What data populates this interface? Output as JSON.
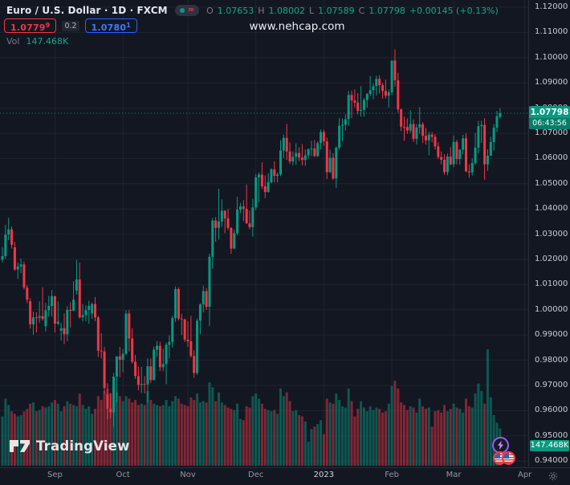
{
  "header": {
    "symbol_title": "Euro / U.S. Dollar · 1D · FXCM",
    "ohlc": {
      "open_label": "O",
      "open": "1.07653",
      "high_label": "H",
      "high": "1.08002",
      "low_label": "L",
      "low": "1.07589",
      "close_label": "C",
      "close": "1.07798",
      "change": "+0.00145 (+0.13%)"
    },
    "sell_button": {
      "price": "1.0779",
      "superscript": "9"
    },
    "spread": "0.2",
    "buy_button": {
      "price": "1.0780",
      "superscript": "1"
    },
    "volume_label": "Vol",
    "volume_value": "147.468K"
  },
  "watermark": "www.nehcap.com",
  "logo_text": "TradingView",
  "price_axis": {
    "labels": [
      "1.12000",
      "1.11000",
      "1.10000",
      "1.09000",
      "1.08000",
      "1.07000",
      "1.06000",
      "1.05000",
      "1.04000",
      "1.03000",
      "1.02000",
      "1.01000",
      "1.00000",
      "0.99000",
      "0.98000",
      "0.97000",
      "0.96000",
      "0.95000",
      "0.94000"
    ],
    "current_price_badge": {
      "price": "1.07798",
      "countdown": "06:43:56"
    },
    "volume_badge": "147.468K"
  },
  "time_axis": {
    "ticks": [
      {
        "label": "Sep",
        "index": 17
      },
      {
        "label": "Oct",
        "index": 39
      },
      {
        "label": "Nov",
        "index": 60
      },
      {
        "label": "Dec",
        "index": 82
      },
      {
        "label": "2023",
        "index": 104,
        "year": true
      },
      {
        "label": "Feb",
        "index": 126
      },
      {
        "label": "Mar",
        "index": 146
      },
      {
        "label": "Apr",
        "index": 169
      }
    ]
  },
  "icons": {
    "header_toggle": [
      "series-dot-icon",
      "wave-icon"
    ],
    "events": [
      "lightning-event-icon",
      "flag-event-icon",
      "flag-event-icon"
    ],
    "time_axis": [
      "gear-icon"
    ],
    "logo": [
      "tradingview-logo-icon"
    ]
  },
  "colors": {
    "background": "#131722",
    "up": "#089981",
    "down": "#f23645",
    "volume_up": "rgba(8,153,129,0.5)",
    "volume_down": "rgba(242,54,69,0.5)",
    "buy_blue": "#2962ff",
    "sell_red": "#f23645",
    "badge_green": "#089981",
    "axis_text": "#c9ccd4",
    "muted_text": "#787b86",
    "grid": "rgba(171,180,202,0.08)",
    "separator": "#2a2e39"
  },
  "chart_data": {
    "type": "candlestick",
    "symbol": "EUR/USD",
    "interval": "1D",
    "title": "Euro / U.S. Dollar · 1D · FXCM",
    "price_range": [
      0.94,
      1.12
    ],
    "volume_pane": true,
    "columns": [
      "open",
      "high",
      "low",
      "close",
      "volume_k"
    ],
    "candles": [
      [
        1.0199,
        1.0249,
        1.0188,
        1.0213,
        195
      ],
      [
        1.0213,
        1.0337,
        1.0202,
        1.0298,
        265
      ],
      [
        1.0298,
        1.0365,
        1.0276,
        1.0319,
        240
      ],
      [
        1.0319,
        1.033,
        1.0243,
        1.0258,
        215
      ],
      [
        1.0248,
        1.0269,
        1.0154,
        1.016,
        205
      ],
      [
        1.016,
        1.0188,
        1.0122,
        1.0172,
        195
      ],
      [
        1.0172,
        1.0203,
        1.0145,
        1.018,
        200
      ],
      [
        1.018,
        1.0191,
        1.008,
        1.0088,
        215
      ],
      [
        1.0088,
        1.0098,
        1.0026,
        1.004,
        225
      ],
      [
        1.0034,
        1.0046,
        0.9926,
        0.9942,
        245
      ],
      [
        0.9942,
        0.9993,
        0.9901,
        0.997,
        250
      ],
      [
        0.997,
        0.999,
        0.991,
        0.9968,
        215
      ],
      [
        0.9968,
        1.0033,
        0.9949,
        0.9975,
        220
      ],
      [
        0.9975,
        1.009,
        0.9957,
        0.9964,
        235
      ],
      [
        0.9935,
        1.0028,
        0.9914,
        0.9998,
        230
      ],
      [
        0.9998,
        1.0055,
        0.9972,
        1.0015,
        235
      ],
      [
        1.0015,
        1.0079,
        0.9972,
        1.0054,
        250
      ],
      [
        1.0054,
        1.0055,
        0.991,
        0.9945,
        260
      ],
      [
        0.9945,
        1.0033,
        0.9939,
        0.9953,
        245
      ],
      [
        0.9917,
        0.9948,
        0.9878,
        0.9927,
        215
      ],
      [
        0.9927,
        0.9986,
        0.9864,
        0.9903,
        235
      ],
      [
        0.9903,
        1.0014,
        0.9875,
        1.0,
        255
      ],
      [
        1.0,
        1.003,
        0.993,
        0.9996,
        245
      ],
      [
        0.9996,
        1.0113,
        0.9994,
        1.004,
        240
      ],
      [
        1.0076,
        1.0198,
        1.006,
        1.012,
        235
      ],
      [
        1.012,
        1.0187,
        0.9965,
        0.997,
        285
      ],
      [
        0.997,
        1.0023,
        0.9954,
        0.9979,
        240
      ],
      [
        0.9979,
        1.0018,
        0.9955,
        0.9999,
        225
      ],
      [
        0.9999,
        1.0036,
        0.9945,
        1.0015,
        235
      ],
      [
        0.9985,
        1.0029,
        0.9964,
        1.0023,
        205
      ],
      [
        1.0023,
        1.005,
        0.9955,
        0.997,
        225
      ],
      [
        0.997,
        0.9975,
        0.9813,
        0.9838,
        275
      ],
      [
        0.9838,
        0.9907,
        0.9807,
        0.9835,
        260
      ],
      [
        0.9835,
        0.9852,
        0.9667,
        0.969,
        295
      ],
      [
        0.9665,
        0.9709,
        0.9565,
        0.9608,
        305
      ],
      [
        0.9608,
        0.967,
        0.957,
        0.9593,
        285
      ],
      [
        0.9593,
        0.975,
        0.9536,
        0.9735,
        315
      ],
      [
        0.9735,
        0.9816,
        0.9635,
        0.9815,
        290
      ],
      [
        0.9815,
        0.9853,
        0.9733,
        0.9802,
        275
      ],
      [
        0.9802,
        0.9844,
        0.9752,
        0.9826,
        255
      ],
      [
        0.9826,
        0.9999,
        0.982,
        0.9985,
        275
      ],
      [
        0.9985,
        0.9999,
        0.9835,
        0.9886,
        265
      ],
      [
        0.9886,
        0.9926,
        0.9787,
        0.9794,
        250
      ],
      [
        0.9794,
        0.9821,
        0.9726,
        0.9737,
        260
      ],
      [
        0.9737,
        0.9774,
        0.9681,
        0.9702,
        240
      ],
      [
        0.9702,
        0.9774,
        0.967,
        0.9706,
        245
      ],
      [
        0.9706,
        0.9737,
        0.9668,
        0.9704,
        240
      ],
      [
        0.9704,
        0.9807,
        0.9632,
        0.9776,
        295
      ],
      [
        0.9776,
        0.9807,
        0.9709,
        0.9721,
        260
      ],
      [
        0.9721,
        0.9854,
        0.9721,
        0.9842,
        245
      ],
      [
        0.9842,
        0.9876,
        0.9814,
        0.9857,
        240
      ],
      [
        0.9857,
        0.9873,
        0.9757,
        0.9772,
        235
      ],
      [
        0.9772,
        0.9845,
        0.9756,
        0.9785,
        240
      ],
      [
        0.9785,
        0.987,
        0.9705,
        0.9861,
        260
      ],
      [
        0.9861,
        0.9899,
        0.9807,
        0.9873,
        235
      ],
      [
        0.9873,
        0.9976,
        0.985,
        0.9967,
        255
      ],
      [
        0.9967,
        1.0093,
        0.9952,
        1.0082,
        275
      ],
      [
        1.0082,
        1.0089,
        0.9958,
        0.9965,
        265
      ],
      [
        0.9965,
        0.9985,
        0.99,
        0.9962,
        245
      ],
      [
        0.9962,
        0.9965,
        0.9872,
        0.9882,
        240
      ],
      [
        0.9882,
        0.9954,
        0.9853,
        0.9875,
        235
      ],
      [
        0.9875,
        0.9976,
        0.981,
        0.9817,
        270
      ],
      [
        0.9817,
        0.984,
        0.973,
        0.9749,
        260
      ],
      [
        0.9749,
        0.9965,
        0.9741,
        0.9957,
        285
      ],
      [
        0.9957,
        1.0026,
        0.9904,
        1.0021,
        250
      ],
      [
        1.0021,
        1.0096,
        0.999,
        1.0074,
        255
      ],
      [
        1.0074,
        1.0085,
        0.9999,
        1.0012,
        250
      ],
      [
        1.0012,
        1.0222,
        0.9935,
        1.021,
        330
      ],
      [
        1.021,
        1.0364,
        1.0163,
        1.0354,
        310
      ],
      [
        1.0354,
        1.0368,
        1.027,
        1.0325,
        255
      ],
      [
        1.0325,
        1.048,
        1.0279,
        1.035,
        290
      ],
      [
        1.035,
        1.0438,
        1.0328,
        1.0393,
        250
      ],
      [
        1.0393,
        1.0395,
        1.0304,
        1.0363,
        240
      ],
      [
        1.0363,
        1.04,
        1.0317,
        1.0325,
        230
      ],
      [
        1.0325,
        1.0327,
        1.0222,
        1.0243,
        225
      ],
      [
        1.0243,
        1.0318,
        1.024,
        1.0304,
        220
      ],
      [
        1.0304,
        1.0448,
        1.0296,
        1.0397,
        245
      ],
      [
        1.0397,
        1.0424,
        1.0383,
        1.041,
        185
      ],
      [
        1.041,
        1.0435,
        1.0352,
        1.04,
        180
      ],
      [
        1.04,
        1.0497,
        1.034,
        1.0343,
        235
      ],
      [
        1.0343,
        1.0394,
        1.0319,
        1.0328,
        230
      ],
      [
        1.0328,
        1.044,
        1.029,
        1.0406,
        275
      ],
      [
        1.0406,
        1.0539,
        1.0395,
        1.0525,
        285
      ],
      [
        1.0525,
        1.0545,
        1.0428,
        1.0536,
        265
      ],
      [
        1.0536,
        1.0585,
        1.0479,
        1.049,
        245
      ],
      [
        1.049,
        1.0533,
        1.0443,
        1.0467,
        225
      ],
      [
        1.0467,
        1.0542,
        1.0465,
        1.0506,
        220
      ],
      [
        1.0506,
        1.0562,
        1.0501,
        1.0557,
        215
      ],
      [
        1.0557,
        1.0589,
        1.0505,
        1.0531,
        220
      ],
      [
        1.0531,
        1.0545,
        1.0505,
        1.0537,
        205
      ],
      [
        1.0537,
        1.0673,
        1.053,
        1.0632,
        305
      ],
      [
        1.0632,
        1.0695,
        1.0601,
        1.0682,
        275
      ],
      [
        1.0682,
        1.0737,
        1.0594,
        1.0628,
        290
      ],
      [
        1.0628,
        1.0664,
        1.0578,
        1.0588,
        255
      ],
      [
        1.0588,
        1.0629,
        1.0573,
        1.0607,
        215
      ],
      [
        1.0607,
        1.066,
        1.0575,
        1.0622,
        220
      ],
      [
        1.0622,
        1.0645,
        1.0589,
        1.0604,
        200
      ],
      [
        1.0604,
        1.0657,
        1.0573,
        1.0594,
        195
      ],
      [
        1.0594,
        1.0636,
        1.0571,
        1.0613,
        175
      ],
      [
        1.0613,
        1.064,
        1.06,
        1.0637,
        95
      ],
      [
        1.0637,
        1.067,
        1.061,
        1.064,
        145
      ],
      [
        1.064,
        1.0673,
        1.0605,
        1.061,
        155
      ],
      [
        1.061,
        1.0669,
        1.0606,
        1.0661,
        165
      ],
      [
        1.0661,
        1.0715,
        1.0636,
        1.0705,
        180
      ],
      [
        1.0705,
        1.0714,
        1.065,
        1.0668,
        125
      ],
      [
        1.0668,
        1.0683,
        1.0519,
        1.0546,
        265
      ],
      [
        1.0546,
        1.0635,
        1.0542,
        1.0603,
        250
      ],
      [
        1.0603,
        1.0621,
        1.0515,
        1.0521,
        245
      ],
      [
        1.0521,
        1.0648,
        1.0483,
        1.0643,
        285
      ],
      [
        1.0643,
        1.0761,
        1.0634,
        1.073,
        260
      ],
      [
        1.073,
        1.0758,
        1.0669,
        1.0734,
        235
      ],
      [
        1.0734,
        1.0776,
        1.0711,
        1.0756,
        230
      ],
      [
        1.0756,
        1.0868,
        1.0729,
        1.0852,
        305
      ],
      [
        1.0852,
        1.0869,
        1.076,
        1.083,
        255
      ],
      [
        1.083,
        1.0874,
        1.0802,
        1.0822,
        195
      ],
      [
        1.0822,
        1.086,
        1.0775,
        1.0789,
        225
      ],
      [
        1.0789,
        1.0887,
        1.0766,
        1.0793,
        255
      ],
      [
        1.0793,
        1.084,
        1.0766,
        1.0832,
        230
      ],
      [
        1.0832,
        1.086,
        1.0802,
        1.0856,
        215
      ],
      [
        1.0856,
        1.0927,
        1.0848,
        1.0871,
        235
      ],
      [
        1.0871,
        1.0898,
        1.0835,
        1.0887,
        220
      ],
      [
        1.0887,
        1.0929,
        1.085,
        1.0916,
        230
      ],
      [
        1.0916,
        1.093,
        1.0858,
        1.0891,
        225
      ],
      [
        1.0891,
        1.09,
        1.0837,
        1.0868,
        210
      ],
      [
        1.0868,
        1.0913,
        1.0838,
        1.0849,
        215
      ],
      [
        1.0849,
        1.0874,
        1.0802,
        1.0863,
        245
      ],
      [
        1.0863,
        1.099,
        1.0852,
        1.0988,
        315
      ],
      [
        1.0988,
        1.1033,
        1.0885,
        1.091,
        335
      ],
      [
        1.091,
        1.094,
        1.0782,
        1.0795,
        305
      ],
      [
        1.0795,
        1.0798,
        1.0709,
        1.0726,
        250
      ],
      [
        1.0726,
        1.0766,
        1.067,
        1.0725,
        240
      ],
      [
        1.0725,
        1.0759,
        1.0698,
        1.0711,
        220
      ],
      [
        1.0711,
        1.0791,
        1.0702,
        1.0737,
        235
      ],
      [
        1.0737,
        1.0755,
        1.0666,
        1.0678,
        230
      ],
      [
        1.0678,
        1.0737,
        1.0656,
        1.0723,
        210
      ],
      [
        1.0723,
        1.0804,
        1.0698,
        1.0736,
        265
      ],
      [
        1.0736,
        1.0744,
        1.0661,
        1.069,
        235
      ],
      [
        1.069,
        1.0721,
        1.0655,
        1.0672,
        225
      ],
      [
        1.0672,
        1.0706,
        1.0613,
        1.0695,
        230
      ],
      [
        1.0695,
        1.0705,
        1.0664,
        1.0686,
        155
      ],
      [
        1.0686,
        1.0697,
        1.0636,
        1.0648,
        215
      ],
      [
        1.0648,
        1.0665,
        1.0598,
        1.0606,
        220
      ],
      [
        1.0606,
        1.0628,
        1.0577,
        1.0595,
        210
      ],
      [
        1.0595,
        1.0617,
        1.0536,
        1.0546,
        240
      ],
      [
        1.0546,
        1.062,
        1.0533,
        1.0608,
        215
      ],
      [
        1.0608,
        1.0645,
        1.0572,
        1.0577,
        225
      ],
      [
        1.0577,
        1.0691,
        1.0565,
        1.0666,
        245
      ],
      [
        1.0666,
        1.0674,
        1.0577,
        1.0598,
        230
      ],
      [
        1.0598,
        1.0638,
        1.0576,
        1.0635,
        225
      ],
      [
        1.0635,
        1.0694,
        1.0617,
        1.068,
        210
      ],
      [
        1.068,
        1.07,
        1.0546,
        1.0549,
        265
      ],
      [
        1.0549,
        1.0577,
        1.0524,
        1.0545,
        235
      ],
      [
        1.0545,
        1.06,
        1.0533,
        1.0582,
        230
      ],
      [
        1.0582,
        1.0701,
        1.0575,
        1.0643,
        285
      ],
      [
        1.0643,
        1.0749,
        1.062,
        1.0728,
        325
      ],
      [
        1.0728,
        1.075,
        1.0662,
        1.0733,
        295
      ],
      [
        1.0733,
        1.076,
        1.0516,
        1.0577,
        245
      ],
      [
        1.0577,
        1.0636,
        1.0551,
        1.0611,
        460
      ],
      [
        1.0611,
        1.0686,
        1.0611,
        1.0665,
        270
      ],
      [
        1.0665,
        1.0737,
        1.0632,
        1.0722,
        200
      ],
      [
        1.0722,
        1.0789,
        1.0705,
        1.0768,
        170
      ],
      [
        1.07653,
        1.08002,
        1.07589,
        1.07798,
        147.468
      ]
    ]
  }
}
